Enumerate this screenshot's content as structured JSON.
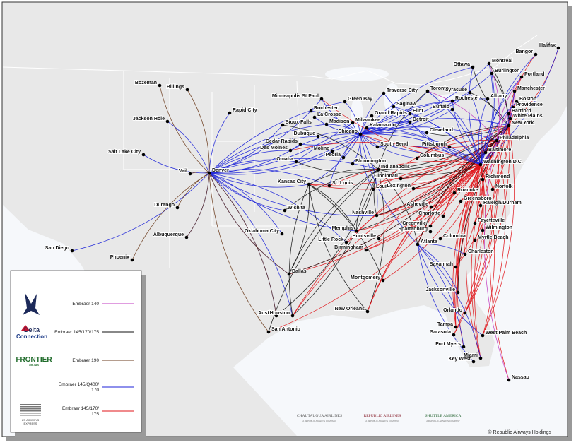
{
  "cities": [
    "Halifax",
    "Bangor",
    "Montreal",
    "Ottawa",
    "Burlington",
    "Portland",
    "Manchester",
    "Albany",
    "Syracuse",
    "Boston",
    "Providence",
    "Hartford",
    "White Plains",
    "New York",
    "Toronto",
    "Rochester",
    "Buffalo",
    "Traverse City",
    "Green Bay",
    "Minneapolis St Paul",
    "Rochester",
    "La Crosse",
    "Madison",
    "Milwaukee",
    "Saginaw",
    "Grand Rapids",
    "Flint",
    "Detroit",
    "Kalamazoo",
    "Chicago",
    "Dubuque",
    "Cedar Rapids",
    "Des Moines",
    "Moline",
    "Peoria",
    "Bloomington",
    "South Bend",
    "Cleveland",
    "Columbus",
    "Pittsburgh",
    "Indianapolis",
    "Cincinnati",
    "Louisville",
    "Lexington",
    "Omaha",
    "Kansas City",
    "St. Louis",
    "Sioux Falls",
    "Rapid City",
    "Billings",
    "Bozeman",
    "Jackson Hole",
    "Salt Lake City",
    "Vail",
    "Denver",
    "Durango",
    "Albuquerque",
    "Phoenix",
    "San Diego",
    "Wichita",
    "Oklahoma City",
    "Dallas",
    "Austin",
    "San Antonio",
    "Houston",
    "Memphis",
    "Little Rock",
    "Nashville",
    "Huntsville",
    "Birmingham",
    "Atlanta",
    "Montgomery",
    "New Orleans",
    "Asheville",
    "Greenville/",
    "Spartanburg",
    "Charlotte",
    "Columbia",
    "Charleston",
    "Savannah",
    "Jacksonville",
    "Orlando",
    "Tampa",
    "Sarasota",
    "Fort Myers",
    "Key West",
    "Miami",
    "West Palm Beach",
    "Nassau",
    "Myrtle Beach",
    "Wilmington",
    "Fayetteville",
    "Raleigh/Durham",
    "Greensboro",
    "Roanoke",
    "Norfolk",
    "Richmond",
    "Washington D.C.",
    "Baltimore",
    "Philadelphia"
  ],
  "legend": {
    "items": [
      {
        "label_lines": [
          "Embraer 140"
        ],
        "color": "#c23bc2"
      },
      {
        "logo_text": [
          "Delta",
          "Connection"
        ],
        "label_lines": [
          "Embraer 145/170/175"
        ],
        "color": "#111111"
      },
      {
        "logo_text": [
          "FRONTIER",
          "AIRLINES"
        ],
        "label_lines": [
          "Embraer 190"
        ],
        "color": "#6b3b1c"
      },
      {
        "label_lines": [
          "Embraer 145/Q400/",
          "170"
        ],
        "color": "#1c22d8"
      },
      {
        "logo_text": [
          "US AIRWAYS",
          "EXPRESS"
        ],
        "label_lines": [
          "Embraer 145/170/",
          "175"
        ],
        "color": "#e0141a"
      }
    ]
  },
  "partners": [
    {
      "name": "CHAUTAUQUA AIRLINES",
      "tagline": "A REPUBLIC AIRWAYS COMPANY"
    },
    {
      "name": "REPUBLIC AIRLINES",
      "tagline": "A REPUBLIC AIRWAYS COMPANY"
    },
    {
      "name": "SHUTTLE AMERICA",
      "tagline": "A REPUBLIC AIRWAYS COMPANY"
    }
  ],
  "copyright": "© Republic Airways Holdings"
}
